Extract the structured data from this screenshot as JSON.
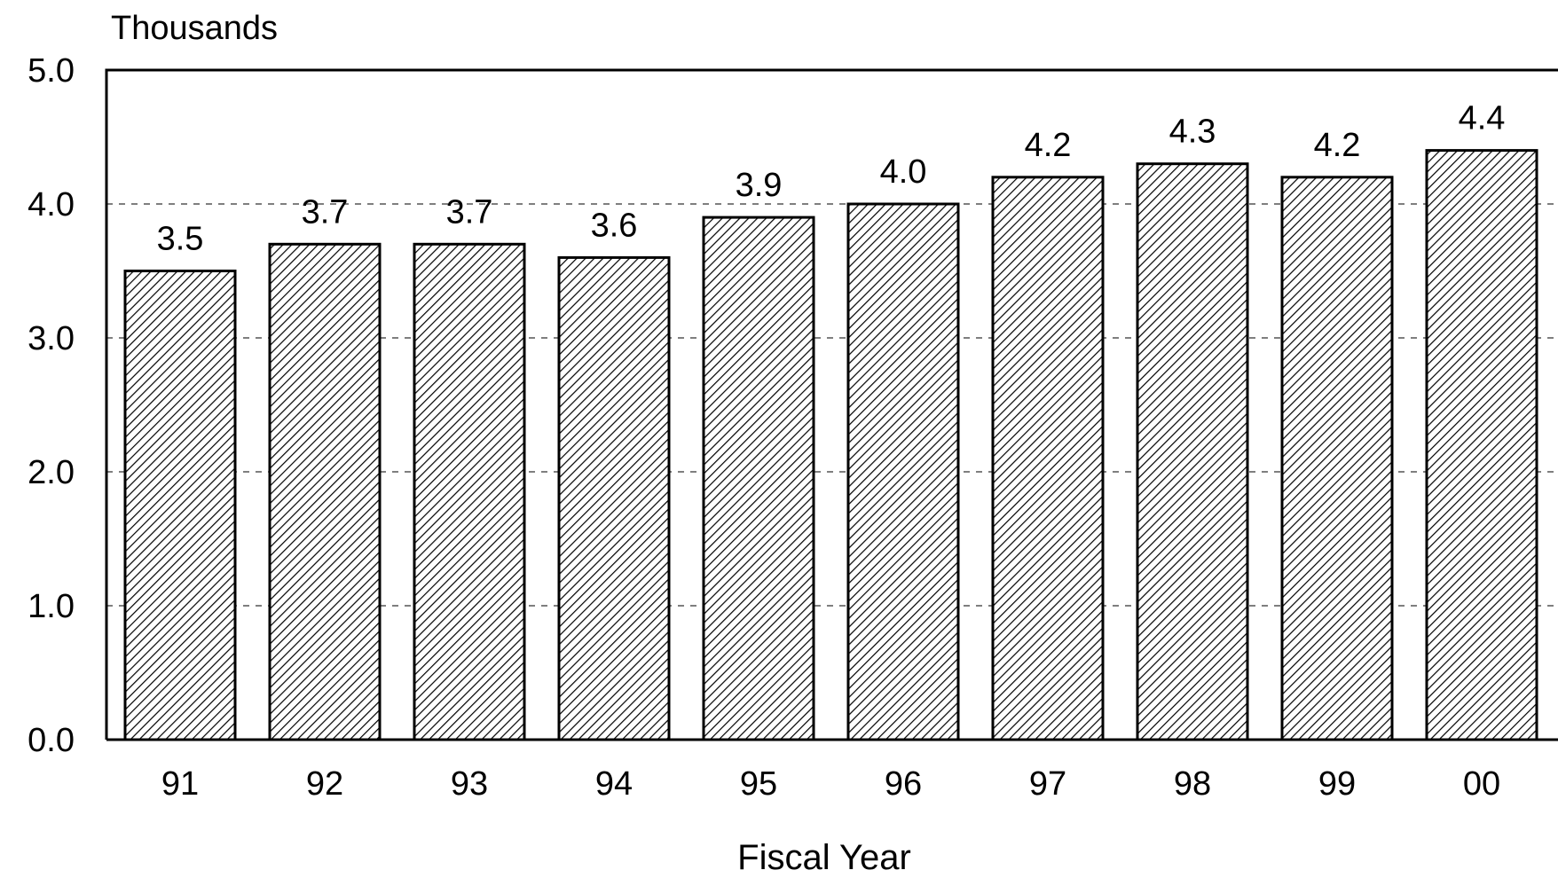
{
  "chart_data": {
    "type": "bar",
    "title": "",
    "unit_label": "Thousands",
    "xlabel": "Fiscal Year",
    "ylabel": "",
    "categories": [
      "91",
      "92",
      "93",
      "94",
      "95",
      "96",
      "97",
      "98",
      "99",
      "00"
    ],
    "values": [
      3.5,
      3.7,
      3.7,
      3.6,
      3.9,
      4.0,
      4.2,
      4.3,
      4.2,
      4.4
    ],
    "value_labels": [
      "3.5",
      "3.7",
      "3.7",
      "3.6",
      "3.9",
      "4.0",
      "4.2",
      "4.3",
      "4.2",
      "4.4"
    ],
    "ylim": [
      0,
      5
    ],
    "yticks": [
      0,
      1,
      2,
      3,
      4,
      5
    ],
    "ytick_labels": [
      "0.0",
      "1.0",
      "2.0",
      "3.0",
      "4.0",
      "5.0"
    ],
    "grid": "horizontal dashed",
    "bar_fill": "diagonal hatch",
    "colors": {
      "bar_stroke": "#000000",
      "hatch": "#000000",
      "grid": "#555555",
      "axis": "#000000"
    }
  }
}
